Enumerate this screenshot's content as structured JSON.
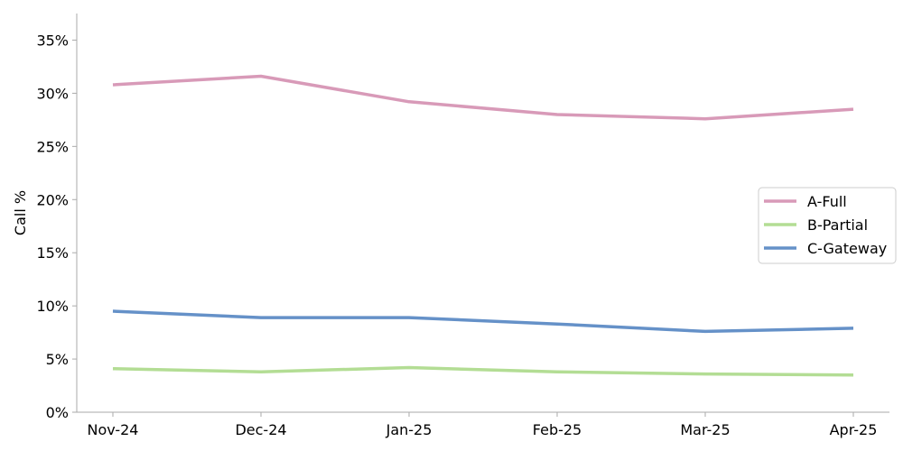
{
  "chart_data": {
    "type": "line",
    "title": "",
    "xlabel": "",
    "ylabel": "Call %",
    "categories": [
      "Nov-24",
      "Dec-24",
      "Jan-25",
      "Feb-25",
      "Mar-25",
      "Apr-25"
    ],
    "ylim": [
      0,
      37.5
    ],
    "yticks": [
      0,
      5,
      10,
      15,
      20,
      25,
      30,
      35
    ],
    "ytick_labels": [
      "0%",
      "5%",
      "10%",
      "15%",
      "20%",
      "25%",
      "30%",
      "35%"
    ],
    "grid": false,
    "legend_position": "center-right",
    "series": [
      {
        "name": "A-Full",
        "color": "#d89ab8",
        "values": [
          30.8,
          31.6,
          29.2,
          28.0,
          27.6,
          28.5
        ]
      },
      {
        "name": "B-Partial",
        "color": "#b3dd94",
        "values": [
          4.1,
          3.8,
          4.2,
          3.8,
          3.6,
          3.5
        ]
      },
      {
        "name": "C-Gateway",
        "color": "#6591c8",
        "values": [
          9.5,
          8.9,
          8.9,
          8.3,
          7.6,
          7.9
        ]
      }
    ]
  }
}
